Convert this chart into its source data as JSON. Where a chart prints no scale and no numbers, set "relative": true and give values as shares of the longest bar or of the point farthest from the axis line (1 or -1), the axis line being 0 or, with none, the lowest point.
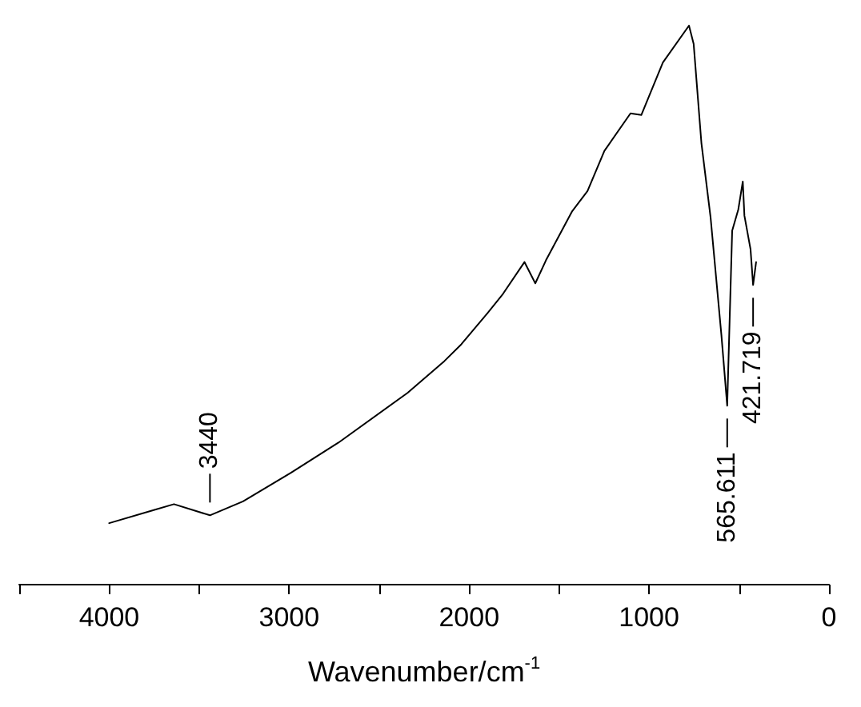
{
  "chart_data": {
    "type": "line",
    "xlabel": "Wavenumber/cm$^{-1}$",
    "relative": true,
    "xlim": [
      4500,
      0
    ],
    "xticks": [
      {
        "value": 4500,
        "label": null
      },
      4000,
      {
        "value": 3500,
        "label": null
      },
      3000,
      {
        "value": 2500,
        "label": null
      },
      2000,
      {
        "value": 1500,
        "label": null
      },
      1000,
      {
        "value": 500,
        "label": null
      },
      0
    ],
    "grid": false,
    "marker": "none",
    "line_style": "solid",
    "series": [
      {
        "color": "#000000",
        "x": [
          4000,
          3756,
          3640,
          3440,
          3256,
          2990,
          2726,
          2342,
          2137,
          2043,
          1897,
          1812,
          1692,
          1632,
          1573,
          1427,
          1342,
          1248,
          1103,
          1043,
          923,
          778,
          752,
          709,
          658,
          598,
          565.611,
          538,
          504,
          479,
          470,
          436,
          421.719,
          405
        ],
        "values": [
          0.11,
          0.133,
          0.144,
          0.124,
          0.149,
          0.2,
          0.254,
          0.343,
          0.4,
          0.43,
          0.486,
          0.52,
          0.577,
          0.539,
          0.58,
          0.668,
          0.704,
          0.776,
          0.843,
          0.84,
          0.934,
          1.0,
          0.967,
          0.79,
          0.657,
          0.447,
          0.32,
          0.633,
          0.671,
          0.721,
          0.66,
          0.6,
          0.536,
          0.577
        ]
      }
    ],
    "annotations": [
      {
        "text": "3440",
        "x": 3440,
        "y": 0.124
      },
      {
        "text": "565.611",
        "x": 565.611,
        "y": 0.32
      },
      {
        "text": "421.719",
        "x": 421.719,
        "y": 0.536
      }
    ]
  }
}
